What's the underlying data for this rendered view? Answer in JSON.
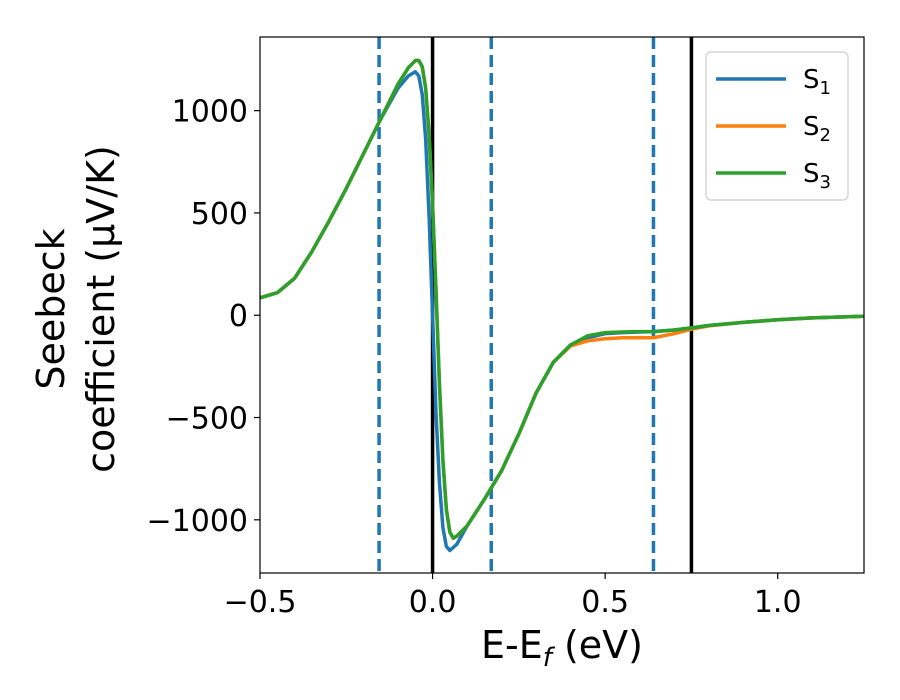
{
  "chart_data": {
    "type": "line",
    "title": "",
    "xlabel": "E-E",
    "xlabel_sub": "f",
    "xlabel_unit": " (eV)",
    "ylabel_line1": "Seebeck",
    "ylabel_line2": "coefficient  (μV/K)",
    "xlim": [
      -0.5,
      1.25
    ],
    "ylim": [
      -1260,
      1360
    ],
    "xticks": [
      -0.5,
      0.0,
      0.5,
      1.0
    ],
    "xtick_labels": [
      "−0.5",
      "0.0",
      "0.5",
      "1.0"
    ],
    "yticks": [
      -1000,
      -500,
      0,
      500,
      1000
    ],
    "ytick_labels": [
      "−1000",
      "−500",
      "0",
      "500",
      "1000"
    ],
    "grid": false,
    "legend_position": "top-right",
    "vlines_solid": [
      0.0,
      0.75
    ],
    "vlines_dashed": [
      -0.155,
      0.17,
      0.64
    ],
    "vline_solid_color": "#000000",
    "vline_dashed_color": "#1f77b4",
    "series": [
      {
        "name": "S",
        "subscript": "1",
        "color": "#1f77b4",
        "x": [
          -0.5,
          -0.45,
          -0.4,
          -0.35,
          -0.3,
          -0.25,
          -0.2,
          -0.15,
          -0.1,
          -0.07,
          -0.05,
          -0.04,
          -0.03,
          -0.02,
          -0.01,
          0.0,
          0.01,
          0.02,
          0.03,
          0.04,
          0.05,
          0.07,
          0.1,
          0.15,
          0.2,
          0.25,
          0.3,
          0.35,
          0.4,
          0.45,
          0.5,
          0.55,
          0.6,
          0.64,
          0.7,
          0.75,
          0.8,
          0.9,
          1.0,
          1.1,
          1.25
        ],
        "y": [
          85,
          110,
          180,
          310,
          460,
          620,
          790,
          960,
          1110,
          1170,
          1190,
          1170,
          1080,
          860,
          480,
          0,
          -480,
          -820,
          -1040,
          -1130,
          -1150,
          -1120,
          -1030,
          -900,
          -760,
          -580,
          -380,
          -230,
          -145,
          -110,
          -90,
          -85,
          -82,
          -80,
          -72,
          -62,
          -50,
          -35,
          -22,
          -13,
          -5
        ]
      },
      {
        "name": "S",
        "subscript": "2",
        "color": "#ff7f0e",
        "x": [
          -0.5,
          -0.45,
          -0.4,
          -0.35,
          -0.3,
          -0.25,
          -0.2,
          -0.15,
          -0.1,
          -0.07,
          -0.05,
          -0.04,
          -0.03,
          -0.02,
          -0.01,
          0.0,
          0.01,
          0.02,
          0.03,
          0.04,
          0.05,
          0.06,
          0.07,
          0.1,
          0.15,
          0.2,
          0.25,
          0.3,
          0.35,
          0.4,
          0.45,
          0.5,
          0.55,
          0.6,
          0.64,
          0.7,
          0.75,
          0.8,
          0.9,
          1.0,
          1.1,
          1.25
        ],
        "y": [
          85,
          110,
          180,
          310,
          460,
          620,
          790,
          960,
          1130,
          1210,
          1245,
          1245,
          1215,
          1110,
          880,
          540,
          120,
          -340,
          -710,
          -950,
          -1060,
          -1090,
          -1080,
          -1030,
          -900,
          -760,
          -580,
          -380,
          -230,
          -150,
          -125,
          -115,
          -110,
          -110,
          -110,
          -90,
          -68,
          -52,
          -35,
          -22,
          -13,
          -5
        ]
      },
      {
        "name": "S",
        "subscript": "3",
        "color": "#2ca02c",
        "x": [
          -0.5,
          -0.45,
          -0.4,
          -0.35,
          -0.3,
          -0.25,
          -0.2,
          -0.15,
          -0.1,
          -0.07,
          -0.05,
          -0.04,
          -0.03,
          -0.02,
          -0.01,
          0.0,
          0.01,
          0.02,
          0.03,
          0.04,
          0.05,
          0.06,
          0.07,
          0.1,
          0.15,
          0.2,
          0.25,
          0.3,
          0.35,
          0.4,
          0.45,
          0.5,
          0.55,
          0.6,
          0.64,
          0.7,
          0.75,
          0.8,
          0.9,
          1.0,
          1.1,
          1.25
        ],
        "y": [
          85,
          110,
          180,
          310,
          460,
          620,
          790,
          960,
          1130,
          1210,
          1245,
          1245,
          1215,
          1110,
          880,
          540,
          120,
          -340,
          -710,
          -950,
          -1060,
          -1090,
          -1080,
          -1030,
          -900,
          -760,
          -580,
          -380,
          -230,
          -145,
          -100,
          -85,
          -82,
          -80,
          -80,
          -72,
          -62,
          -50,
          -35,
          -22,
          -13,
          -5
        ]
      }
    ]
  }
}
